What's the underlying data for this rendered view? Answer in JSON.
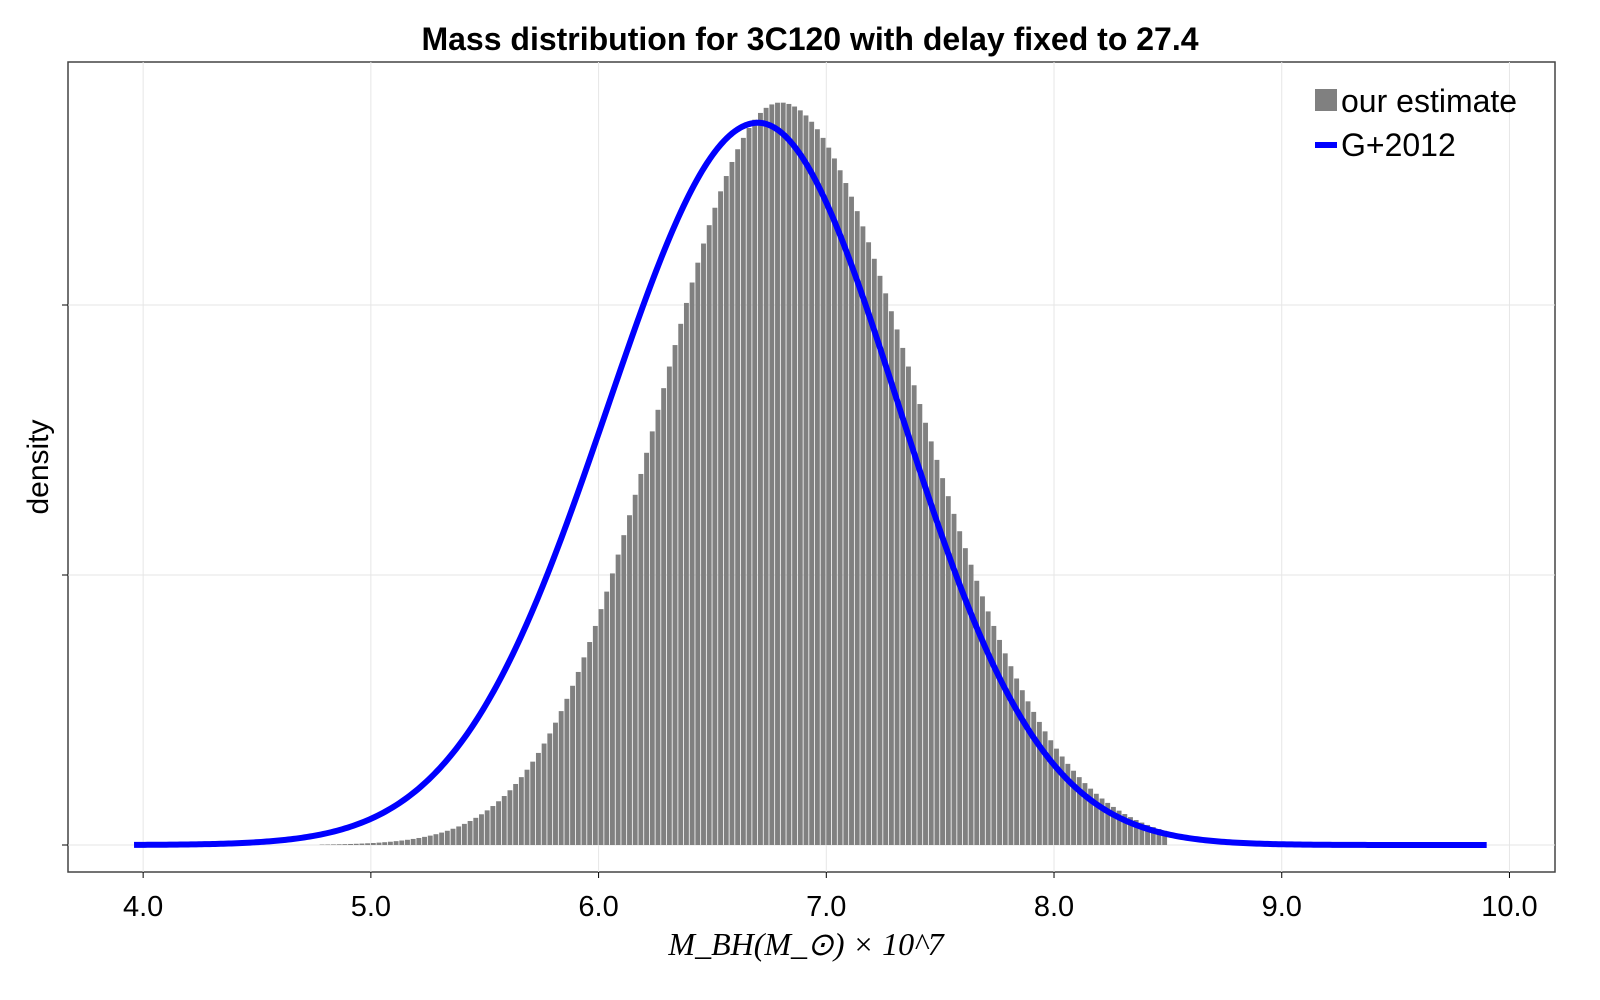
{
  "chart_data": {
    "type": "bar",
    "title": "Mass distribution for 3C120 with delay fixed to 27.4",
    "xlabel": "M_BH(M_⊙) × 10^7",
    "ylabel": "density",
    "xlim": [
      3.67,
      10.2
    ],
    "ylim": [
      -0.04,
      1.16
    ],
    "x_ticks": [
      4.0,
      5.0,
      6.0,
      7.0,
      8.0,
      9.0,
      10.0
    ],
    "x_tick_labels": [
      "4.0",
      "5.0",
      "6.0",
      "7.0",
      "8.0",
      "9.0",
      "10.0"
    ],
    "y_ticks": [
      0.0,
      0.4,
      0.8
    ],
    "grid": true,
    "legend_position": "top-right",
    "series": [
      {
        "name": "our estimate",
        "kind": "histogram",
        "color": "#808080",
        "bin_start": 4.5,
        "bin_width": 0.025,
        "bins": 160,
        "peak_x": 6.8,
        "sigma_left": 0.52,
        "sigma_right": 0.6,
        "peak_density": 1.1
      },
      {
        "name": "G+2012",
        "kind": "line",
        "color": "#0000ff",
        "x_range": [
          3.96,
          9.9
        ],
        "peak_x": 6.7,
        "sigma_left": 0.66,
        "sigma_right": 0.62,
        "peak_density": 1.07
      }
    ]
  }
}
